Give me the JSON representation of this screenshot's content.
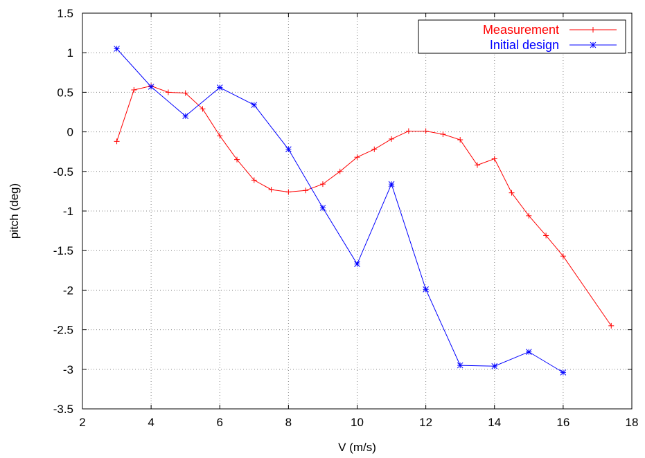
{
  "chart_data": {
    "type": "line",
    "xlabel": "V (m/s)",
    "ylabel": "pitch (deg)",
    "xlim": [
      2,
      18
    ],
    "ylim": [
      -3.5,
      1.5
    ],
    "x_ticks": [
      2,
      4,
      6,
      8,
      10,
      12,
      14,
      16,
      18
    ],
    "x_tick_labels": [
      "2",
      "4",
      "6",
      "8",
      "10",
      "12",
      "14",
      "16",
      "18"
    ],
    "y_ticks": [
      1.5,
      1,
      0.5,
      0,
      -0.5,
      -1,
      -1.5,
      -2,
      -2.5,
      -3,
      -3.5
    ],
    "y_tick_labels": [
      "1.5",
      "1",
      "0.5",
      "0",
      "-0.5",
      "-1",
      "-1.5",
      "-2",
      "-2.5",
      "-3",
      "-3.5"
    ],
    "grid": true,
    "legend_position": "top-right",
    "series": [
      {
        "name": "Measurement",
        "color": "#ff0000",
        "marker": "plus",
        "x": [
          3,
          3.5,
          4,
          4.5,
          5,
          5.5,
          6,
          6.5,
          7,
          7.5,
          8,
          8.5,
          9,
          9.5,
          10,
          10.5,
          11,
          11.5,
          12,
          12.5,
          13,
          13.5,
          14,
          14.5,
          15,
          15.5,
          16,
          17.4
        ],
        "y": [
          -0.12,
          0.53,
          0.58,
          0.5,
          0.49,
          0.29,
          -0.05,
          -0.35,
          -0.61,
          -0.73,
          -0.76,
          -0.74,
          -0.66,
          -0.5,
          -0.32,
          -0.22,
          -0.09,
          0.01,
          0.01,
          -0.03,
          -0.1,
          -0.42,
          -0.34,
          -0.77,
          -1.06,
          -1.31,
          -1.57,
          -2.45
        ]
      },
      {
        "name": "Initial design",
        "color": "#0000ff",
        "marker": "star",
        "x": [
          3,
          4,
          5,
          6,
          7,
          8,
          9,
          10,
          11,
          12,
          13,
          14,
          15,
          16
        ],
        "y": [
          1.05,
          0.57,
          0.2,
          0.56,
          0.34,
          -0.22,
          -0.96,
          -1.67,
          -0.66,
          -1.99,
          -2.95,
          -2.96,
          -2.78,
          -3.04
        ]
      }
    ]
  }
}
